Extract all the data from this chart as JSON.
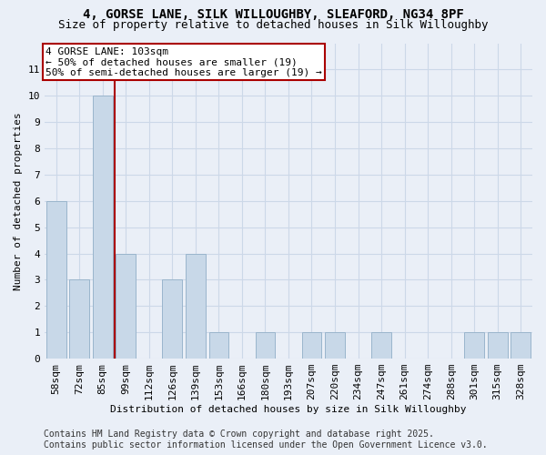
{
  "title1": "4, GORSE LANE, SILK WILLOUGHBY, SLEAFORD, NG34 8PF",
  "title2": "Size of property relative to detached houses in Silk Willoughby",
  "xlabel": "Distribution of detached houses by size in Silk Willoughby",
  "ylabel": "Number of detached properties",
  "categories": [
    "58sqm",
    "72sqm",
    "85sqm",
    "99sqm",
    "112sqm",
    "126sqm",
    "139sqm",
    "153sqm",
    "166sqm",
    "180sqm",
    "193sqm",
    "207sqm",
    "220sqm",
    "234sqm",
    "247sqm",
    "261sqm",
    "274sqm",
    "288sqm",
    "301sqm",
    "315sqm",
    "328sqm"
  ],
  "values": [
    6,
    3,
    10,
    4,
    0,
    3,
    4,
    1,
    0,
    1,
    0,
    1,
    1,
    0,
    1,
    0,
    0,
    0,
    1,
    1,
    1
  ],
  "bar_color": "#c8d8e8",
  "bar_edge_color": "#9ab5cc",
  "grid_color": "#ccd8e8",
  "background_color": "#eaeff7",
  "vline_color": "#aa0000",
  "annotation_title": "4 GORSE LANE: 103sqm",
  "annotation_line1": "← 50% of detached houses are smaller (19)",
  "annotation_line2": "50% of semi-detached houses are larger (19) →",
  "annotation_box_color": "#ffffff",
  "annotation_box_edge": "#aa0000",
  "footer1": "Contains HM Land Registry data © Crown copyright and database right 2025.",
  "footer2": "Contains public sector information licensed under the Open Government Licence v3.0.",
  "ylim": [
    0,
    12
  ],
  "yticks": [
    0,
    1,
    2,
    3,
    4,
    5,
    6,
    7,
    8,
    9,
    10,
    11,
    12
  ],
  "title1_fontsize": 10,
  "title2_fontsize": 9,
  "axis_label_fontsize": 8,
  "tick_fontsize": 8,
  "footer_fontsize": 7,
  "annotation_fontsize": 8,
  "vline_x": 3.0
}
